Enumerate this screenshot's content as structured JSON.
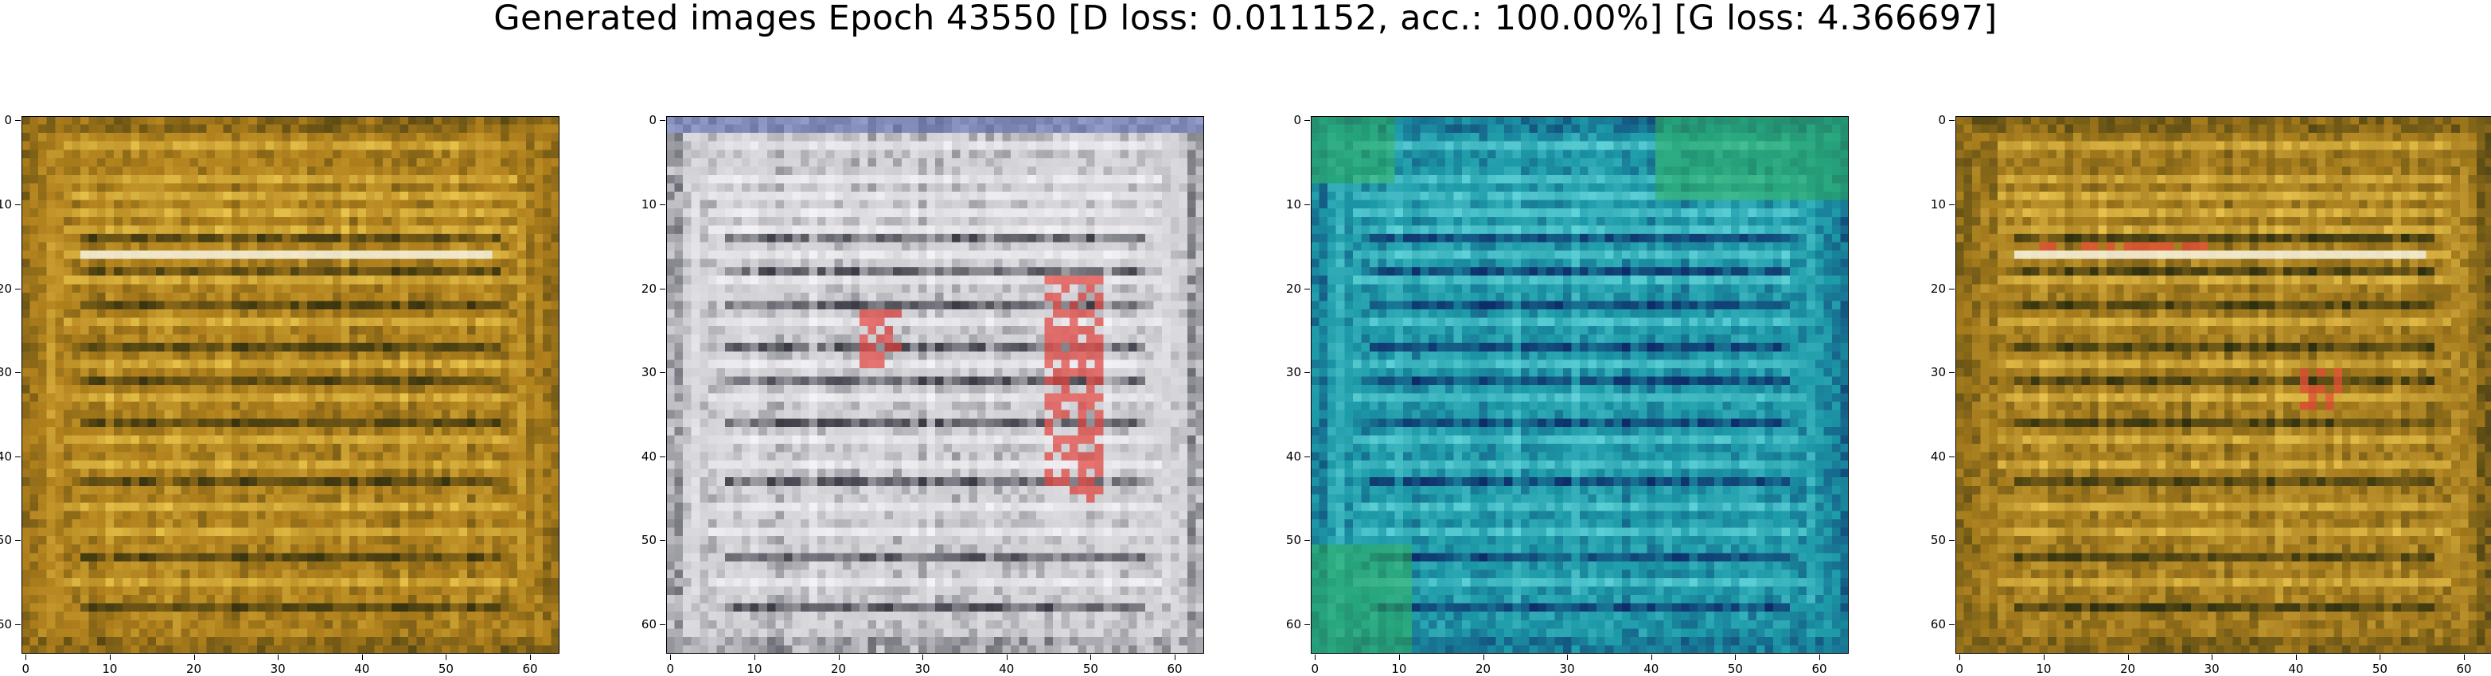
{
  "figure": {
    "title": "Generated images Epoch 43550 [D loss: 0.011152, acc.: 100.00%] [G loss: 4.366697]"
  },
  "axes": {
    "ticks": [
      "0",
      "10",
      "20",
      "30",
      "40",
      "50",
      "60"
    ],
    "tick_values": [
      0,
      10,
      20,
      30,
      40,
      50,
      60
    ],
    "extent": [
      -0.5,
      63.5
    ]
  },
  "panels": [
    {
      "name": "generated-image-1",
      "palette": {
        "base": "#b0801c",
        "light": "#e8c34a",
        "dark": "#3a3510",
        "accent": "#f4f0e0"
      }
    },
    {
      "name": "generated-image-2",
      "palette": {
        "base": "#cfcfd4",
        "light": "#f4f2f6",
        "dark": "#3c3c46",
        "accent": "#e2403a"
      }
    },
    {
      "name": "generated-image-3",
      "palette": {
        "base": "#1d9aa8",
        "light": "#5fd2d8",
        "dark": "#0e2c6a",
        "accent": "#2fae5a"
      }
    },
    {
      "name": "generated-image-4",
      "palette": {
        "base": "#a47a1c",
        "light": "#e6c04a",
        "dark": "#2e3010",
        "accent": "#e84a3a"
      }
    }
  ]
}
